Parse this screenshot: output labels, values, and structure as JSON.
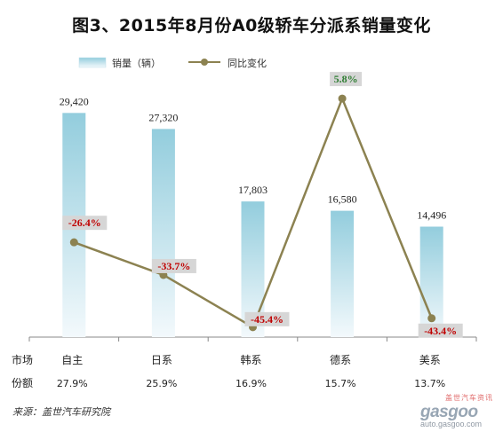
{
  "title": "图3、2015年8月份A0级轿车分派系销量变化",
  "source_note": "来源：盖世汽车研究院",
  "watermark": {
    "cn": "盖世汽车资讯",
    "logo": "gasgoo",
    "url": "auto.gasgoo.com"
  },
  "row_labels": {
    "market": "市场",
    "share": "份额"
  },
  "colors": {
    "bar_top": "#93cddd",
    "bar_bottom": "#f3f9fc",
    "line": "#8c8251",
    "value_label_red": "#c00000",
    "value_label_green": "#2e7d32",
    "label_box": "#d6d6d6"
  },
  "chart_data": {
    "type": "bar",
    "categories": [
      "自主",
      "日系",
      "韩系",
      "德系",
      "美系"
    ],
    "shares": [
      "27.9%",
      "25.9%",
      "16.9%",
      "15.7%",
      "13.7%"
    ],
    "series": [
      {
        "name": "销量（辆）",
        "type": "bar",
        "values": [
          29420,
          27320,
          17803,
          16580,
          14496
        ],
        "labels": [
          "29,420",
          "27,320",
          "17,803",
          "16,580",
          "14,496"
        ]
      },
      {
        "name": "同比变化",
        "type": "line",
        "values": [
          -26.4,
          -33.7,
          -45.4,
          5.8,
          -43.4
        ],
        "labels": [
          "-26.4%",
          "-33.7%",
          "-45.4%",
          "5.8%",
          "-43.4%"
        ]
      }
    ],
    "bar_axis_range": [
      0,
      34000
    ],
    "line_axis_range": [
      -50,
      8
    ],
    "grid": false,
    "legend_position": "top-left"
  }
}
